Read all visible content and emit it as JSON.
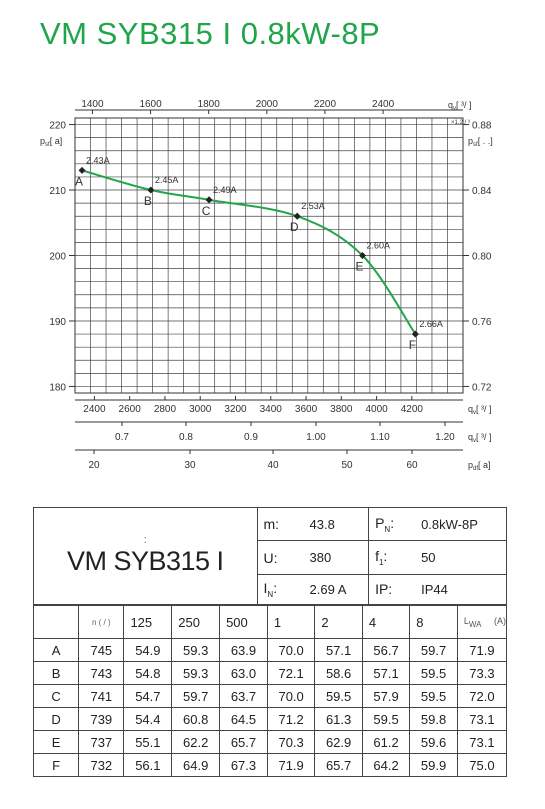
{
  "title": "VM SYB315 I 0.8kW-8P",
  "chart_data": {
    "type": "line",
    "axes": {
      "top_q": {
        "label": "q",
        "sub": "v",
        "bracket": "[     ³/      ]",
        "ticks": [
          1400,
          1600,
          1800,
          2000,
          2200,
          2400
        ],
        "range": [
          1340,
          2675
        ]
      },
      "top_note": "×1.2  /  ³",
      "left_p": {
        "label": "p",
        "sub": "sf",
        "bracket": "[    a]",
        "ticks": [
          180,
          190,
          200,
          210,
          220
        ],
        "range": [
          179,
          221
        ]
      },
      "right_p": {
        "label": "p",
        "sub": "sf",
        "bracket": "[       .      .]",
        "ticks": [
          "0.72",
          "0.76",
          "0.80",
          "0.84",
          "0.88"
        ]
      },
      "bottom_q1": {
        "label": "q",
        "sub": "v",
        "bracket": "[  ³/   ]",
        "ticks": [
          2400,
          2600,
          2800,
          3000,
          3200,
          3400,
          3600,
          3800,
          4000,
          4200
        ],
        "range": [
          2290,
          4490
        ]
      },
      "bottom_q2": {
        "label": "q",
        "sub": "v",
        "bracket": "[  ³/   ]",
        "ticks": [
          "0.7",
          "0.8",
          "0.9",
          "1.00",
          "1.10",
          "1.20"
        ]
      },
      "bottom_pd": {
        "label": "p",
        "sub": "df",
        "bracket": "[    a]",
        "ticks": [
          20,
          30,
          40,
          50,
          60
        ]
      }
    },
    "points": [
      {
        "name": "A",
        "current": "2.43A",
        "x": 2330,
        "y": 213
      },
      {
        "name": "B",
        "current": "2.45A",
        "x": 2720,
        "y": 210
      },
      {
        "name": "C",
        "current": "2.49A",
        "x": 3050,
        "y": 208.5
      },
      {
        "name": "D",
        "current": "2.53A",
        "x": 3550,
        "y": 206
      },
      {
        "name": "E",
        "current": "2.60A",
        "x": 3920,
        "y": 200
      },
      {
        "name": "F",
        "current": "2.66A",
        "x": 4220,
        "y": 188
      }
    ],
    "curve_color": "#22a54b",
    "grid": true
  },
  "specs": {
    "model": "VM SYB315 I",
    "colon": ":",
    "m_label": "m:",
    "m_value": "43.8",
    "u_label": "U:",
    "u_value": "380",
    "i_label": "I",
    "i_sub": "N",
    "i_colon": ":",
    "i_value": "2.69  A",
    "pn_label": "P",
    "pn_sub": "N",
    "pn_colon": ":",
    "pn_value": "0.8kW-8P",
    "f_label": "f",
    "f_sub": "1",
    "f_colon": ":",
    "f_value": "50",
    "ip_label": "IP:",
    "ip_value": "IP44"
  },
  "sound_table": {
    "speed_header": "n (  /   )",
    "freq_headers": [
      "125",
      "250",
      "500",
      "1",
      "2",
      "4",
      "8"
    ],
    "lw_header": "L",
    "lw_sub": "WA",
    "lw_unit": "(A)",
    "rows": [
      {
        "p": "A",
        "n": "745",
        "v": [
          "54.9",
          "59.3",
          "63.9",
          "70.0",
          "57.1",
          "56.7",
          "59.7"
        ],
        "lw": "71.9"
      },
      {
        "p": "B",
        "n": "743",
        "v": [
          "54.8",
          "59.3",
          "63.0",
          "72.1",
          "58.6",
          "57.1",
          "59.5"
        ],
        "lw": "73.3"
      },
      {
        "p": "C",
        "n": "741",
        "v": [
          "54.7",
          "59.7",
          "63.7",
          "70.0",
          "59.5",
          "57.9",
          "59.5"
        ],
        "lw": "72.0"
      },
      {
        "p": "D",
        "n": "739",
        "v": [
          "54.4",
          "60.8",
          "64.5",
          "71.2",
          "61.3",
          "59.5",
          "59.8"
        ],
        "lw": "73.1"
      },
      {
        "p": "E",
        "n": "737",
        "v": [
          "55.1",
          "62.2",
          "65.7",
          "70.3",
          "62.9",
          "61.2",
          "59.6"
        ],
        "lw": "73.1"
      },
      {
        "p": "F",
        "n": "732",
        "v": [
          "56.1",
          "64.9",
          "67.3",
          "71.9",
          "65.7",
          "64.2",
          "59.9"
        ],
        "lw": "75.0"
      }
    ]
  }
}
